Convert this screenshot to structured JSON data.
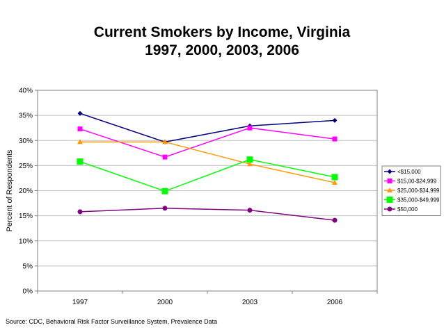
{
  "title_line1": "Current Smokers by Income, Virginia",
  "title_line2": "1997, 2000, 2003, 2006",
  "source": "Source: CDC, Behavioral Risk Factor Surveillance System, Prevalence Data",
  "chart_data": {
    "type": "line",
    "title": "Current Smokers by Income, Virginia 1997, 2000, 2003, 2006",
    "xlabel": "",
    "ylabel": "Percent of Respondents",
    "categories": [
      "1997",
      "2000",
      "2003",
      "2006"
    ],
    "ylim": [
      0,
      40
    ],
    "yticks": [
      "0%",
      "5%",
      "10%",
      "15%",
      "20%",
      "25%",
      "30%",
      "35%",
      "40%"
    ],
    "ytick_values": [
      0,
      5,
      10,
      15,
      20,
      25,
      30,
      35,
      40
    ],
    "grid": true,
    "legend_position": "right",
    "series": [
      {
        "name": "<$15,000",
        "values": [
          35.4,
          29.7,
          32.9,
          34.0
        ],
        "color": "#000080",
        "marker": "diamond"
      },
      {
        "name": "$15,00-$24,999",
        "values": [
          32.3,
          26.7,
          32.5,
          30.3
        ],
        "color": "#ff00ff",
        "marker": "square"
      },
      {
        "name": "$25,000-$34,999",
        "values": [
          29.7,
          29.7,
          25.3,
          21.6
        ],
        "color": "#ff9900",
        "marker": "triangle"
      },
      {
        "name": "$35,000-$49,999",
        "values": [
          25.8,
          19.9,
          26.2,
          22.7
        ],
        "color": "#00ff00",
        "marker": "bigsquare"
      },
      {
        "name": "$50,000",
        "values": [
          15.8,
          16.5,
          16.1,
          14.1
        ],
        "color": "#800080",
        "marker": "circle"
      }
    ]
  }
}
